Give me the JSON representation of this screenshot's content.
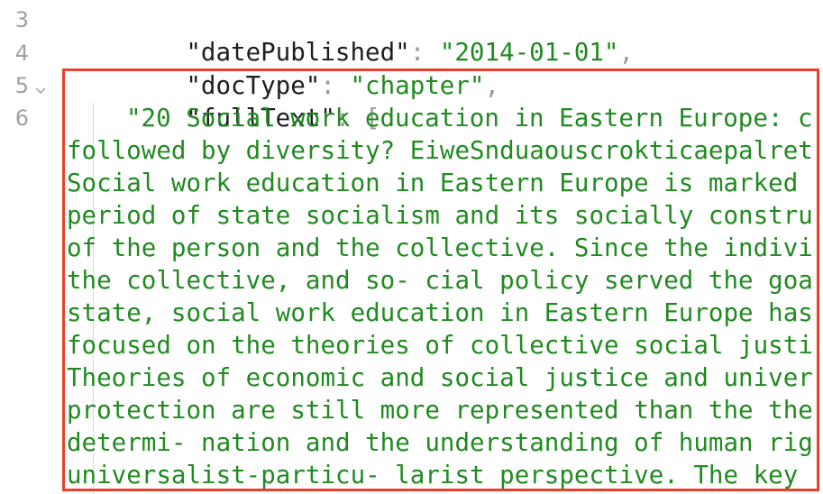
{
  "editor": {
    "lines": [
      {
        "number": "3",
        "key": "\"datePublished\"",
        "colon": ":",
        "value": "\"2014-01-01\"",
        "end": ","
      },
      {
        "number": "4",
        "key": "\"docType\"",
        "colon": ":",
        "value": "\"chapter\"",
        "end": ","
      },
      {
        "number": "5",
        "key": "\"fullText\"",
        "colon": ":",
        "end": "["
      }
    ],
    "text_line": {
      "number": "6",
      "wrapped": [
        "\"20 Social work education in Eastern Europe: c",
        "followed by diversity? EiweSnduaouscrokticaepalret",
        "Social work education in Eastern Europe is marked",
        "period of state socialism and its socially constru",
        "of the person and the collective. Since the indivi",
        "the collective, and so- cial policy served the goa",
        "state, social work education in Eastern Europe has",
        "focused on the theories of collective social justi",
        "Theories of economic and social justice and univer",
        "protection are still more represented than the the",
        "determi- nation and the understanding of human rig",
        "universalist-particu- larist perspective. The key"
      ]
    }
  }
}
